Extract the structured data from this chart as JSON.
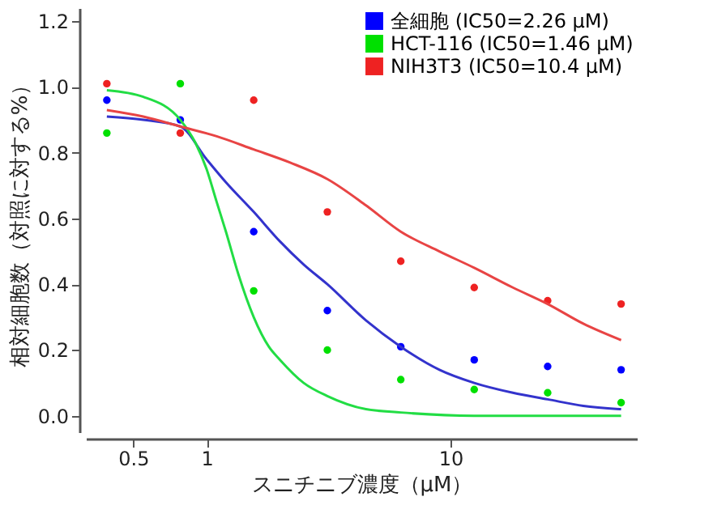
{
  "chart_data": {
    "type": "scatter",
    "xlabel": "スニチニブ濃度（μM）",
    "ylabel": "相対細胞数（対照に対する%）",
    "log": "x",
    "xlim": [
      0.32,
      58
    ],
    "xticks": [
      0.5,
      1,
      10
    ],
    "ylim": [
      -0.05,
      1.24
    ],
    "yticks": [
      {
        "value": 0,
        "label": "0.0"
      },
      0.2,
      0.4,
      0.6,
      0.8,
      {
        "value": 1,
        "label": "1.0"
      },
      1.2
    ],
    "grid": false,
    "legend": "top right",
    "marker": "circle",
    "series": [
      {
        "name": "全細胞 (IC50=2.26 μM)",
        "color": "#0000ff",
        "x": [
          0.39,
          0.78,
          1.56,
          3.125,
          6.25,
          12.5,
          25,
          50
        ],
        "values": [
          0.96,
          0.9,
          0.56,
          0.32,
          0.21,
          0.17,
          0.15,
          0.14
        ]
      },
      {
        "name": "HCT-116 (IC50=1.46 μM)",
        "color": "#00e000",
        "x": [
          0.39,
          0.78,
          1.56,
          3.125,
          6.25,
          12.5,
          25,
          50
        ],
        "values": [
          0.86,
          1.01,
          0.38,
          0.2,
          0.11,
          0.08,
          0.07,
          0.04
        ]
      },
      {
        "name": "NIH3T3 (IC50=10.4 μM)",
        "color": "#ee2222",
        "x": [
          0.39,
          0.78,
          1.56,
          3.125,
          6.25,
          12.5,
          25,
          50
        ],
        "values": [
          1.01,
          0.86,
          0.96,
          0.62,
          0.47,
          0.39,
          0.35,
          0.34
        ]
      },
      {
        "color": "#3333cc",
        "type": "line",
        "marker": "none",
        "x": [
          0.39,
          0.55,
          0.78,
          1.0,
          1.2,
          1.56,
          2.0,
          2.5,
          3.125,
          4.5,
          6.25,
          9,
          12.5,
          18,
          25,
          35,
          50
        ],
        "values": [
          0.91,
          0.9,
          0.88,
          0.78,
          0.71,
          0.62,
          0.53,
          0.46,
          0.4,
          0.29,
          0.21,
          0.14,
          0.1,
          0.07,
          0.05,
          0.03,
          0.02
        ]
      },
      {
        "color": "#22dd44",
        "type": "line",
        "marker": "none",
        "x": [
          0.39,
          0.55,
          0.78,
          0.9,
          1.0,
          1.1,
          1.2,
          1.35,
          1.56,
          1.8,
          2.0,
          2.5,
          3.125,
          4.5,
          6.25,
          12.5,
          25,
          50
        ],
        "values": [
          0.99,
          0.97,
          0.9,
          0.83,
          0.75,
          0.65,
          0.56,
          0.43,
          0.3,
          0.21,
          0.17,
          0.1,
          0.06,
          0.02,
          0.01,
          0.0,
          0.0,
          0.0
        ]
      },
      {
        "color": "#e84444",
        "type": "line",
        "marker": "none",
        "x": [
          0.39,
          0.55,
          0.78,
          1.1,
          1.56,
          2.2,
          3.125,
          4.5,
          6.25,
          9,
          12.5,
          18,
          25,
          35,
          50
        ],
        "values": [
          0.93,
          0.91,
          0.88,
          0.85,
          0.81,
          0.77,
          0.72,
          0.64,
          0.56,
          0.5,
          0.45,
          0.39,
          0.34,
          0.28,
          0.23
        ]
      }
    ]
  }
}
